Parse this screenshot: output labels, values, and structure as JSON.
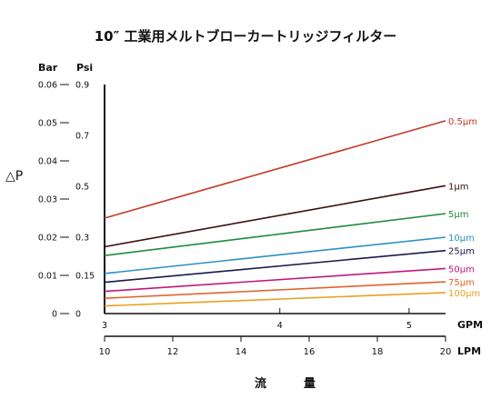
{
  "chart_data": {
    "type": "line",
    "title": "10″ 工業用メルトブローカートリッジフィルター",
    "ylabel": "△P",
    "xlabel": "流　量",
    "y_bar": {
      "unit": "Bar",
      "lim": [
        0,
        0.06
      ],
      "ticks": [
        "0",
        "0.01",
        "0.02",
        "0.03",
        "0.04",
        "0.05",
        "0.06"
      ]
    },
    "y_psi": {
      "unit": "Psi",
      "lim": [
        0,
        0.9
      ],
      "ticks": [
        {
          "v": 0,
          "label": "0"
        },
        {
          "v": 0.15,
          "label": "0.15"
        },
        {
          "v": 0.3,
          "label": "0.3"
        },
        {
          "v": 0.5,
          "label": "0.5"
        },
        {
          "v": 0.7,
          "label": "0.7"
        },
        {
          "v": 0.9,
          "label": "0.9"
        }
      ]
    },
    "x_gpm": {
      "unit": "GPM",
      "ticks": [
        {
          "lpm": 10,
          "label": "3"
        },
        {
          "lpm": 15.14,
          "label": "4"
        },
        {
          "lpm": 18.93,
          "label": "5"
        }
      ]
    },
    "x_lpm": {
      "unit": "LPM",
      "lim": [
        10,
        20
      ],
      "ticks": [
        "10",
        "12",
        "14",
        "16",
        "18",
        "20"
      ]
    },
    "x": [
      10,
      20
    ],
    "series": [
      {
        "name": "0.5μm",
        "color": "#c0392b",
        "values": [
          0.025,
          0.0505
        ]
      },
      {
        "name": "1μm",
        "color": "#3b0f0f",
        "values": [
          0.0175,
          0.0335
        ]
      },
      {
        "name": "5μm",
        "color": "#1e8a3c",
        "values": [
          0.0152,
          0.0262
        ]
      },
      {
        "name": "10μm",
        "color": "#2a8fc4",
        "values": [
          0.0105,
          0.02
        ]
      },
      {
        "name": "25μm",
        "color": "#1a1a4a",
        "values": [
          0.0082,
          0.0165
        ]
      },
      {
        "name": "50μm",
        "color": "#c2187a",
        "values": [
          0.0058,
          0.0118
        ]
      },
      {
        "name": "75μm",
        "color": "#e0622a",
        "values": [
          0.004,
          0.0083
        ]
      },
      {
        "name": "100μm",
        "color": "#e8a020",
        "values": [
          0.002,
          0.0055
        ]
      }
    ]
  }
}
